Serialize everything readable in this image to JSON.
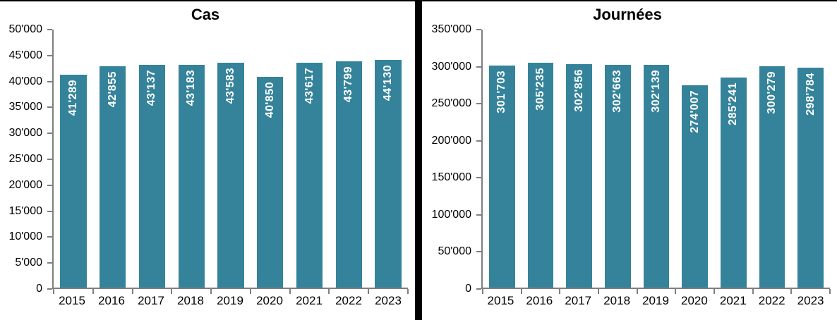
{
  "page": {
    "background_color": "#ffffff",
    "top_border_color": "#000000",
    "divider_color": "#000000"
  },
  "chart_data": [
    {
      "type": "bar",
      "title": "Cas",
      "categories": [
        "2015",
        "2016",
        "2017",
        "2018",
        "2019",
        "2020",
        "2021",
        "2022",
        "2023"
      ],
      "values": [
        41289,
        42855,
        43137,
        43183,
        43583,
        40850,
        43617,
        43799,
        44130
      ],
      "value_labels": [
        "41'289",
        "42'855",
        "43'137",
        "43'183",
        "43'583",
        "40'850",
        "43'617",
        "43'799",
        "44'130"
      ],
      "xlabel": "",
      "ylabel": "",
      "ylim": [
        0,
        50000
      ],
      "y_ticks": [
        {
          "value": 0,
          "label": "0"
        },
        {
          "value": 5000,
          "label": "5'000"
        },
        {
          "value": 10000,
          "label": "10'000"
        },
        {
          "value": 15000,
          "label": "15'000"
        },
        {
          "value": 20000,
          "label": "20'000"
        },
        {
          "value": 25000,
          "label": "25'000"
        },
        {
          "value": 30000,
          "label": "30'000"
        },
        {
          "value": 35000,
          "label": "35'000"
        },
        {
          "value": 40000,
          "label": "40'000"
        },
        {
          "value": 45000,
          "label": "45'000"
        },
        {
          "value": 50000,
          "label": "50'000"
        }
      ],
      "grid": false,
      "legend": "none",
      "bar_color": "#34839B",
      "bar_label_color": "#ffffff",
      "axis_color": "#7f7f7f"
    },
    {
      "type": "bar",
      "title": "Journées",
      "categories": [
        "2015",
        "2016",
        "2017",
        "2018",
        "2019",
        "2020",
        "2021",
        "2022",
        "2023"
      ],
      "values": [
        301703,
        305235,
        302856,
        302663,
        302139,
        274007,
        285241,
        300279,
        298784
      ],
      "value_labels": [
        "301'703",
        "305'235",
        "302'856",
        "302'663",
        "302'139",
        "274'007",
        "285'241",
        "300'279",
        "298'784"
      ],
      "xlabel": "",
      "ylabel": "",
      "ylim": [
        0,
        350000
      ],
      "y_ticks": [
        {
          "value": 0,
          "label": "0"
        },
        {
          "value": 50000,
          "label": "50'000"
        },
        {
          "value": 100000,
          "label": "100'000"
        },
        {
          "value": 150000,
          "label": "150'000"
        },
        {
          "value": 200000,
          "label": "200'000"
        },
        {
          "value": 250000,
          "label": "250'000"
        },
        {
          "value": 300000,
          "label": "300'000"
        },
        {
          "value": 350000,
          "label": "350'000"
        }
      ],
      "grid": false,
      "legend": "none",
      "bar_color": "#34839B",
      "bar_label_color": "#ffffff",
      "axis_color": "#7f7f7f"
    }
  ]
}
